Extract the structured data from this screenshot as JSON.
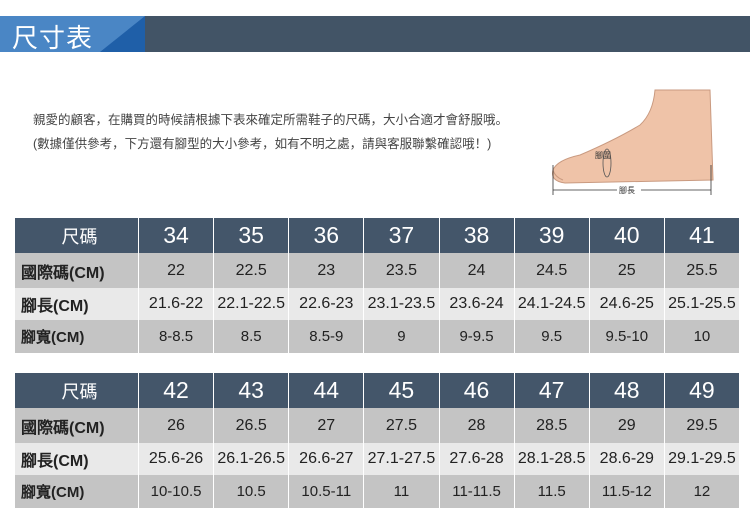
{
  "header": {
    "title": "尺寸表"
  },
  "intro": {
    "text": "親愛的顧客，在購買的時候請根據下表來確定所需鞋子的尺碼，大小合適才會舒服哦。 (數據僅供參考，下方還有腳型的大小參考，如有不明之處，請與客服聯繫確認哦！)"
  },
  "foot_diagram": {
    "girth_label": "腳圍",
    "length_label": "腳長"
  },
  "tables": [
    {
      "rows": [
        {
          "label": "尺碼",
          "values": [
            "34",
            "35",
            "36",
            "37",
            "38",
            "39",
            "40",
            "41"
          ]
        },
        {
          "label": "國際碼(CM)",
          "values": [
            "22",
            "22.5",
            "23",
            "23.5",
            "24",
            "24.5",
            "25",
            "25.5"
          ]
        },
        {
          "label": "腳長(CM)",
          "values": [
            "21.6-22",
            "22.1-22.5",
            "22.6-23",
            "23.1-23.5",
            "23.6-24",
            "24.1-24.5",
            "24.6-25",
            "25.1-25.5"
          ]
        },
        {
          "label": "腳寬(CM)",
          "values": [
            "8-8.5",
            "8.5",
            "8.5-9",
            "9",
            "9-9.5",
            "9.5",
            "9.5-10",
            "10"
          ]
        }
      ]
    },
    {
      "rows": [
        {
          "label": "尺碼",
          "values": [
            "42",
            "43",
            "44",
            "45",
            "46",
            "47",
            "48",
            "49"
          ]
        },
        {
          "label": "國際碼(CM)",
          "values": [
            "26",
            "26.5",
            "27",
            "27.5",
            "28",
            "28.5",
            "29",
            "29.5"
          ]
        },
        {
          "label": "腳長(CM)",
          "values": [
            "25.6-26",
            "26.1-26.5",
            "26.6-27",
            "27.1-27.5",
            "27.6-28",
            "28.1-28.5",
            "28.6-29",
            "29.1-29.5"
          ]
        },
        {
          "label": "腳寬(CM)",
          "values": [
            "10-10.5",
            "10.5",
            "10.5-11",
            "11",
            "11-11.5",
            "11.5",
            "11.5-12",
            "12"
          ]
        }
      ]
    }
  ]
}
